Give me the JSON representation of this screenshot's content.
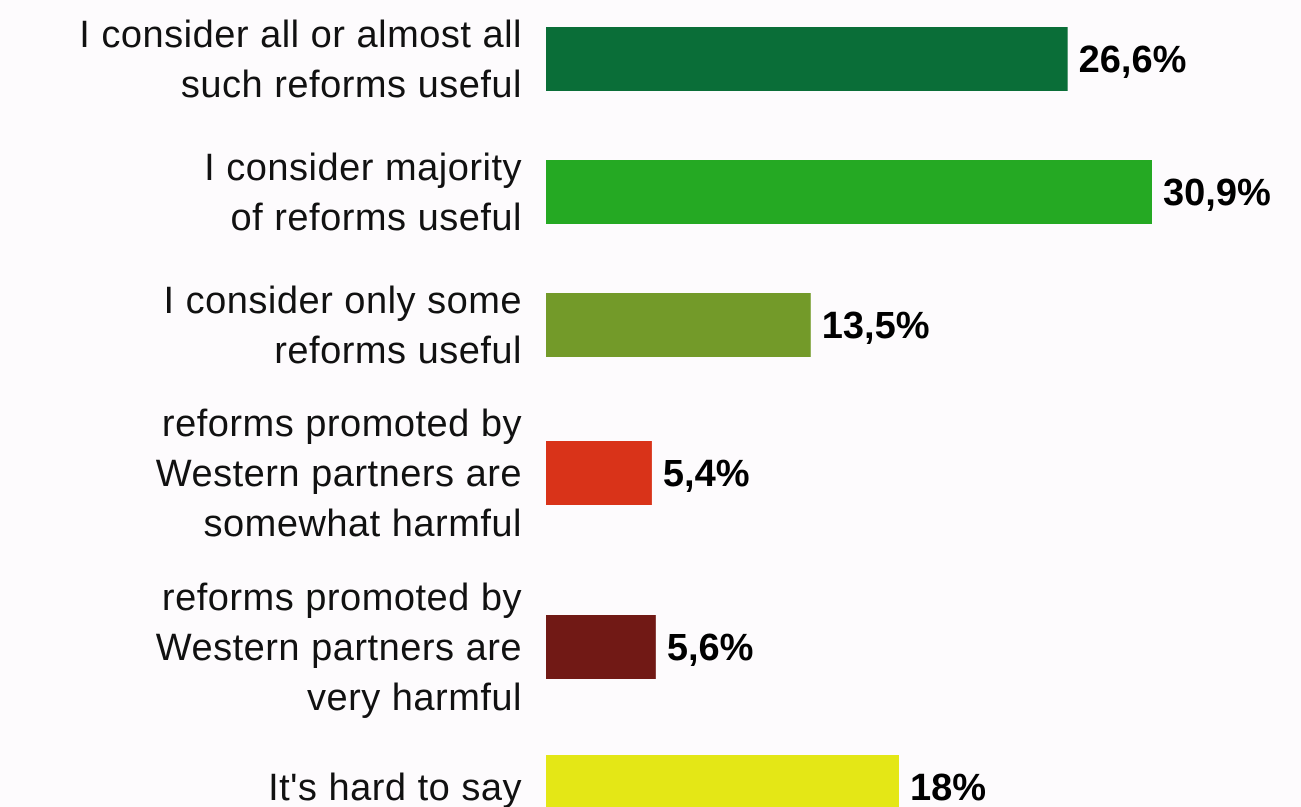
{
  "chart_data": {
    "type": "bar",
    "orientation": "horizontal",
    "categories": [
      [
        "I consider all or almost all",
        "such reforms useful"
      ],
      [
        "I consider majority",
        "of reforms useful"
      ],
      [
        "I consider only some",
        "reforms useful"
      ],
      [
        "reforms promoted by",
        "Western partners are",
        "somewhat harmful"
      ],
      [
        "reforms promoted by",
        "Western partners are",
        "very harmful"
      ],
      [
        "It's hard to say"
      ]
    ],
    "values": [
      26.6,
      30.9,
      13.5,
      5.4,
      5.6,
      18
    ],
    "value_labels": [
      "26,6%",
      "30,9%",
      "13,5%",
      "5,4%",
      "5,6%",
      "18%"
    ],
    "colors": [
      "#0a6e38",
      "#25a923",
      "#739a29",
      "#d93319",
      "#711915",
      "#e4e716"
    ],
    "xlim": [
      0,
      30.9
    ],
    "grid": false,
    "legend": "none"
  }
}
